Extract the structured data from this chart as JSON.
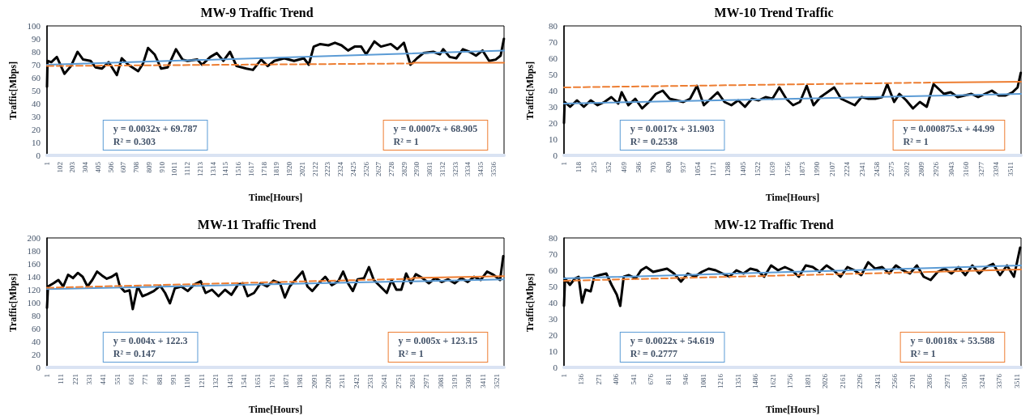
{
  "chart_data": [
    {
      "type": "line",
      "title": "MW-9 Traffic Trend",
      "xlabel": "Time[Hours]",
      "ylabel": "Traffic[Mbps]",
      "marker": "none",
      "xlim": [
        1,
        3620
      ],
      "ylim": [
        0,
        100
      ],
      "yticks": [
        0,
        10,
        20,
        30,
        40,
        50,
        60,
        70,
        80,
        90,
        100
      ],
      "xticks": [
        1,
        102,
        203,
        304,
        405,
        506,
        607,
        708,
        809,
        910,
        1011,
        1112,
        1213,
        1314,
        1415,
        1516,
        1617,
        1718,
        1819,
        1920,
        2021,
        2122,
        2223,
        2324,
        2425,
        2526,
        2627,
        2728,
        2829,
        2930,
        3031,
        3132,
        3233,
        3334,
        3435,
        3536
      ],
      "series": [
        {
          "color": "#000000",
          "x": [
            1,
            5,
            35,
            79,
            139,
            191,
            243,
            287,
            346,
            385,
            437,
            489,
            554,
            593,
            645,
            723,
            762,
            801,
            853,
            905,
            957,
            1022,
            1074,
            1113,
            1191,
            1229,
            1294,
            1346,
            1398,
            1450,
            1502,
            1580,
            1632,
            1697,
            1749,
            1801,
            1879,
            1957,
            2035,
            2074,
            2113,
            2165,
            2229,
            2281,
            2333,
            2385,
            2437,
            2489,
            2528,
            2593,
            2645,
            2723,
            2775,
            2827,
            2879,
            2931,
            2982,
            3060,
            3112,
            3138,
            3190,
            3242,
            3294,
            3346,
            3398,
            3450,
            3502,
            3554,
            3593,
            3619
          ],
          "values": [
            53,
            73,
            72,
            76,
            63,
            69,
            80,
            74,
            73,
            68,
            67,
            72,
            62,
            75,
            70,
            65,
            71,
            83,
            78,
            67,
            68,
            82,
            74,
            73,
            74,
            70,
            76,
            79,
            73,
            80,
            69,
            67,
            66,
            74,
            69,
            73,
            75,
            73,
            75,
            70,
            84,
            86,
            85,
            87,
            85,
            81,
            84,
            84,
            78,
            88,
            84,
            86,
            82,
            87,
            70,
            75,
            79,
            80,
            78,
            82,
            76,
            75,
            82,
            80,
            77,
            81,
            73,
            74,
            77,
            90
          ]
        },
        {
          "color": "#5b9bd5",
          "x": [
            1,
            3620
          ],
          "values": [
            70,
            81
          ]
        },
        {
          "color": "#ed7d31",
          "line_style": "dashed",
          "x": [
            1,
            2900
          ],
          "values": [
            69,
            71
          ]
        },
        {
          "color": "#ed7d31",
          "x": [
            2900,
            3620
          ],
          "values": [
            71.5,
            71.5
          ]
        }
      ],
      "annotations": [
        "y = 0.0032x + 69.787\nR² = 0.303",
        "y = 0.0007x + 68.905\nR² = 1"
      ]
    },
    {
      "type": "line",
      "title": "MW-10 Trend Traffic",
      "xlabel": "Time[Hours]",
      "ylabel": "Traffic[Mbps]",
      "marker": "none",
      "xlim": [
        1,
        3592
      ],
      "ylim": [
        0,
        80
      ],
      "yticks": [
        0,
        10,
        20,
        30,
        40,
        50,
        60,
        70,
        80
      ],
      "xticks": [
        1,
        118,
        235,
        352,
        469,
        586,
        703,
        820,
        937,
        1054,
        1171,
        1288,
        1405,
        1522,
        1639,
        1756,
        1873,
        1990,
        2107,
        2224,
        2341,
        2458,
        2575,
        2692,
        2809,
        2926,
        3043,
        3160,
        3277,
        3394,
        3511
      ],
      "series": [
        {
          "color": "#000000",
          "x": [
            1,
            6,
            49,
            103,
            157,
            211,
            265,
            319,
            373,
            427,
            454,
            507,
            561,
            615,
            669,
            723,
            777,
            831,
            885,
            939,
            992,
            1046,
            1100,
            1154,
            1208,
            1262,
            1316,
            1370,
            1423,
            1477,
            1531,
            1585,
            1639,
            1693,
            1747,
            1801,
            1855,
            1908,
            1962,
            2016,
            2070,
            2124,
            2178,
            2232,
            2286,
            2339,
            2393,
            2447,
            2501,
            2541,
            2595,
            2636,
            2690,
            2743,
            2797,
            2851,
            2905,
            2959,
            2986,
            3040,
            3094,
            3148,
            3202,
            3255,
            3309,
            3363,
            3417,
            3471,
            3525,
            3565,
            3590
          ],
          "values": [
            20,
            33,
            30,
            34,
            30,
            34,
            31,
            33,
            36,
            32,
            39,
            31,
            35,
            29,
            33,
            38,
            40,
            35,
            34,
            33,
            35,
            43,
            31,
            35,
            39,
            33,
            31,
            34,
            30,
            35,
            34,
            36,
            35,
            42,
            35,
            31,
            33,
            43,
            31,
            36,
            39,
            42,
            35,
            33,
            31,
            36,
            35,
            35,
            36,
            44,
            33,
            38,
            34,
            29,
            33,
            30,
            44,
            40,
            38,
            39,
            36,
            37,
            38,
            36,
            38,
            40,
            37,
            37,
            39,
            42,
            51
          ]
        },
        {
          "color": "#5b9bd5",
          "x": [
            1,
            3592
          ],
          "values": [
            32,
            38
          ]
        },
        {
          "color": "#ed7d31",
          "line_style": "dashed",
          "x": [
            1,
            2900
          ],
          "values": [
            42,
            45
          ]
        },
        {
          "color": "#ed7d31",
          "x": [
            2900,
            3592
          ],
          "values": [
            45,
            45.5
          ]
        }
      ],
      "annotations": [
        "y = 0.0017x + 31.903\nR² = 0.2538",
        "y = 0.000875.x + 44.99\nR² = 1"
      ]
    },
    {
      "type": "line",
      "title": "MW-11 Traffic Trend",
      "xlabel": "Time[Hours]",
      "ylabel": "Traffic[Mbps]",
      "marker": "none",
      "xlim": [
        1,
        3577
      ],
      "ylim": [
        0,
        200
      ],
      "yticks": [
        0,
        20,
        40,
        60,
        80,
        100,
        120,
        140,
        160,
        180,
        200
      ],
      "xticks": [
        1,
        111,
        221,
        331,
        441,
        551,
        661,
        771,
        881,
        991,
        1101,
        1211,
        1321,
        1431,
        1541,
        1651,
        1761,
        1871,
        1981,
        2091,
        2201,
        2311,
        2421,
        2531,
        2641,
        2751,
        2861,
        2971,
        3081,
        3191,
        3301,
        3411,
        3521
      ],
      "series": [
        {
          "color": "#000000",
          "x": [
            1,
            9,
            52,
            90,
            128,
            166,
            204,
            242,
            280,
            318,
            355,
            393,
            431,
            469,
            507,
            545,
            571,
            609,
            647,
            672,
            710,
            748,
            786,
            837,
            887,
            925,
            963,
            1001,
            1052,
            1102,
            1153,
            1204,
            1242,
            1292,
            1343,
            1394,
            1444,
            1495,
            1533,
            1571,
            1621,
            1672,
            1723,
            1773,
            1824,
            1862,
            1900,
            1951,
            2001,
            2039,
            2077,
            2128,
            2178,
            2229,
            2280,
            2318,
            2356,
            2394,
            2432,
            2482,
            2520,
            2558,
            2609,
            2660,
            2697,
            2735,
            2773,
            2811,
            2849,
            2887,
            2938,
            2989,
            3039,
            3090,
            3140,
            3191,
            3242,
            3293,
            3343,
            3394,
            3444,
            3495,
            3546,
            3571
          ],
          "values": [
            92,
            125,
            130,
            135,
            125,
            143,
            138,
            146,
            140,
            125,
            135,
            148,
            142,
            137,
            140,
            145,
            125,
            117,
            119,
            90,
            125,
            110,
            113,
            118,
            126,
            115,
            99,
            122,
            125,
            118,
            128,
            133,
            115,
            120,
            110,
            120,
            112,
            128,
            130,
            110,
            115,
            130,
            125,
            134,
            130,
            108,
            125,
            137,
            148,
            125,
            118,
            130,
            140,
            127,
            133,
            148,
            130,
            118,
            136,
            138,
            155,
            135,
            125,
            115,
            135,
            120,
            120,
            145,
            130,
            144,
            138,
            130,
            138,
            132,
            136,
            130,
            138,
            132,
            140,
            135,
            148,
            143,
            135,
            172
          ]
        },
        {
          "color": "#5b9bd5",
          "x": [
            1,
            3577
          ],
          "values": [
            121,
            136
          ]
        },
        {
          "color": "#ed7d31",
          "line_style": "dashed",
          "x": [
            1,
            2861
          ],
          "values": [
            123,
            137
          ]
        },
        {
          "color": "#ed7d31",
          "x": [
            2861,
            3577
          ],
          "values": [
            138,
            141
          ]
        }
      ],
      "annotations": [
        "y = 0.004x + 122.3\nR² = 0.147",
        "y = 0.005x + 123.15\nR² = 1"
      ]
    },
    {
      "type": "line",
      "title": "MW-12 Traffic Trend",
      "xlabel": "Time[Hours]",
      "ylabel": "Traffic[Mbps]",
      "marker": "none",
      "xlim": [
        1,
        3545
      ],
      "ylim": [
        0,
        80
      ],
      "yticks": [
        0,
        10,
        20,
        30,
        40,
        50,
        60,
        70,
        80
      ],
      "xticks": [
        1,
        136,
        271,
        406,
        541,
        676,
        811,
        946,
        1081,
        1216,
        1351,
        1486,
        1621,
        1756,
        1891,
        2026,
        2161,
        2296,
        2431,
        2566,
        2701,
        2836,
        2971,
        3106,
        3241,
        3376,
        3511
      ],
      "series": [
        {
          "color": "#000000",
          "x": [
            1,
            9,
            47,
            87,
            114,
            141,
            168,
            208,
            235,
            275,
            329,
            370,
            410,
            437,
            464,
            504,
            558,
            598,
            639,
            692,
            746,
            800,
            854,
            908,
            961,
            1015,
            1069,
            1123,
            1177,
            1230,
            1284,
            1338,
            1392,
            1446,
            1499,
            1553,
            1607,
            1661,
            1714,
            1768,
            1822,
            1876,
            1930,
            1983,
            2037,
            2091,
            2145,
            2199,
            2253,
            2306,
            2360,
            2414,
            2468,
            2522,
            2575,
            2629,
            2683,
            2737,
            2790,
            2844,
            2898,
            2952,
            3006,
            3060,
            3113,
            3167,
            3221,
            3275,
            3328,
            3382,
            3436,
            3490,
            3538
          ],
          "values": [
            38,
            55,
            51,
            55,
            56,
            40,
            48,
            47,
            56,
            57,
            58,
            51,
            45,
            38,
            56,
            57,
            55,
            60,
            62,
            59,
            60,
            61,
            58,
            53,
            58,
            56,
            59,
            61,
            60,
            58,
            56,
            60,
            58,
            61,
            60,
            56,
            63,
            60,
            62,
            60,
            56,
            63,
            62,
            59,
            63,
            60,
            56,
            62,
            60,
            57,
            65,
            61,
            62,
            58,
            63,
            60,
            58,
            63,
            56,
            54,
            59,
            61,
            58,
            62,
            57,
            63,
            58,
            62,
            64,
            57,
            63,
            56,
            74
          ]
        },
        {
          "color": "#5b9bd5",
          "x": [
            1,
            3545
          ],
          "values": [
            55,
            63
          ]
        },
        {
          "color": "#ed7d31",
          "line_style": "dashed",
          "x": [
            1,
            2836
          ],
          "values": [
            53.5,
            59
          ]
        },
        {
          "color": "#ed7d31",
          "x": [
            2836,
            3545
          ],
          "values": [
            59,
            60.5
          ]
        }
      ],
      "annotations": [
        "y = 0.0022x + 54.619\nR² = 0.2777",
        "y = 0.0018x + 53.588\nR² = 1"
      ]
    }
  ]
}
